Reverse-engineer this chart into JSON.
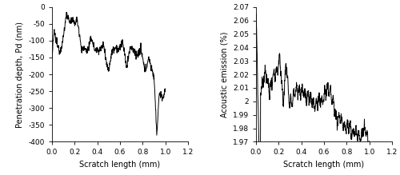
{
  "left": {
    "xlabel": "Scratch length (mm)",
    "ylabel": "Penetration depth, Pd (nm)",
    "xlim": [
      0,
      1.2
    ],
    "ylim": [
      -400,
      0
    ],
    "yticks": [
      0,
      -50,
      -100,
      -150,
      -200,
      -250,
      -300,
      -350,
      -400
    ],
    "ytick_labels": [
      "0",
      "-50",
      "-100",
      "-150",
      "-200",
      "-250",
      "-300",
      "-350",
      "-400"
    ],
    "xticks": [
      0,
      0.2,
      0.4,
      0.6,
      0.8,
      1.0,
      1.2
    ]
  },
  "right": {
    "xlabel": "Scratch length (mm)",
    "ylabel": "Acoustic emission (%)",
    "xlim": [
      0,
      1.2
    ],
    "ylim": [
      1.97,
      2.07
    ],
    "yticks": [
      1.97,
      1.98,
      1.99,
      2.0,
      2.01,
      2.02,
      2.03,
      2.04,
      2.05,
      2.06,
      2.07
    ],
    "ytick_labels": [
      "1.97",
      "1.98",
      "1.99",
      "2",
      "2.01",
      "2.02",
      "2.03",
      "2.04",
      "2.05",
      "2.06",
      "2.07"
    ],
    "xticks": [
      0,
      0.2,
      0.4,
      0.6,
      0.8,
      1.0,
      1.2
    ]
  },
  "line_color": "#000000",
  "line_width": 0.7,
  "background_color": "#ffffff",
  "tick_labelsize": 6.5,
  "label_fontsize": 7.0
}
